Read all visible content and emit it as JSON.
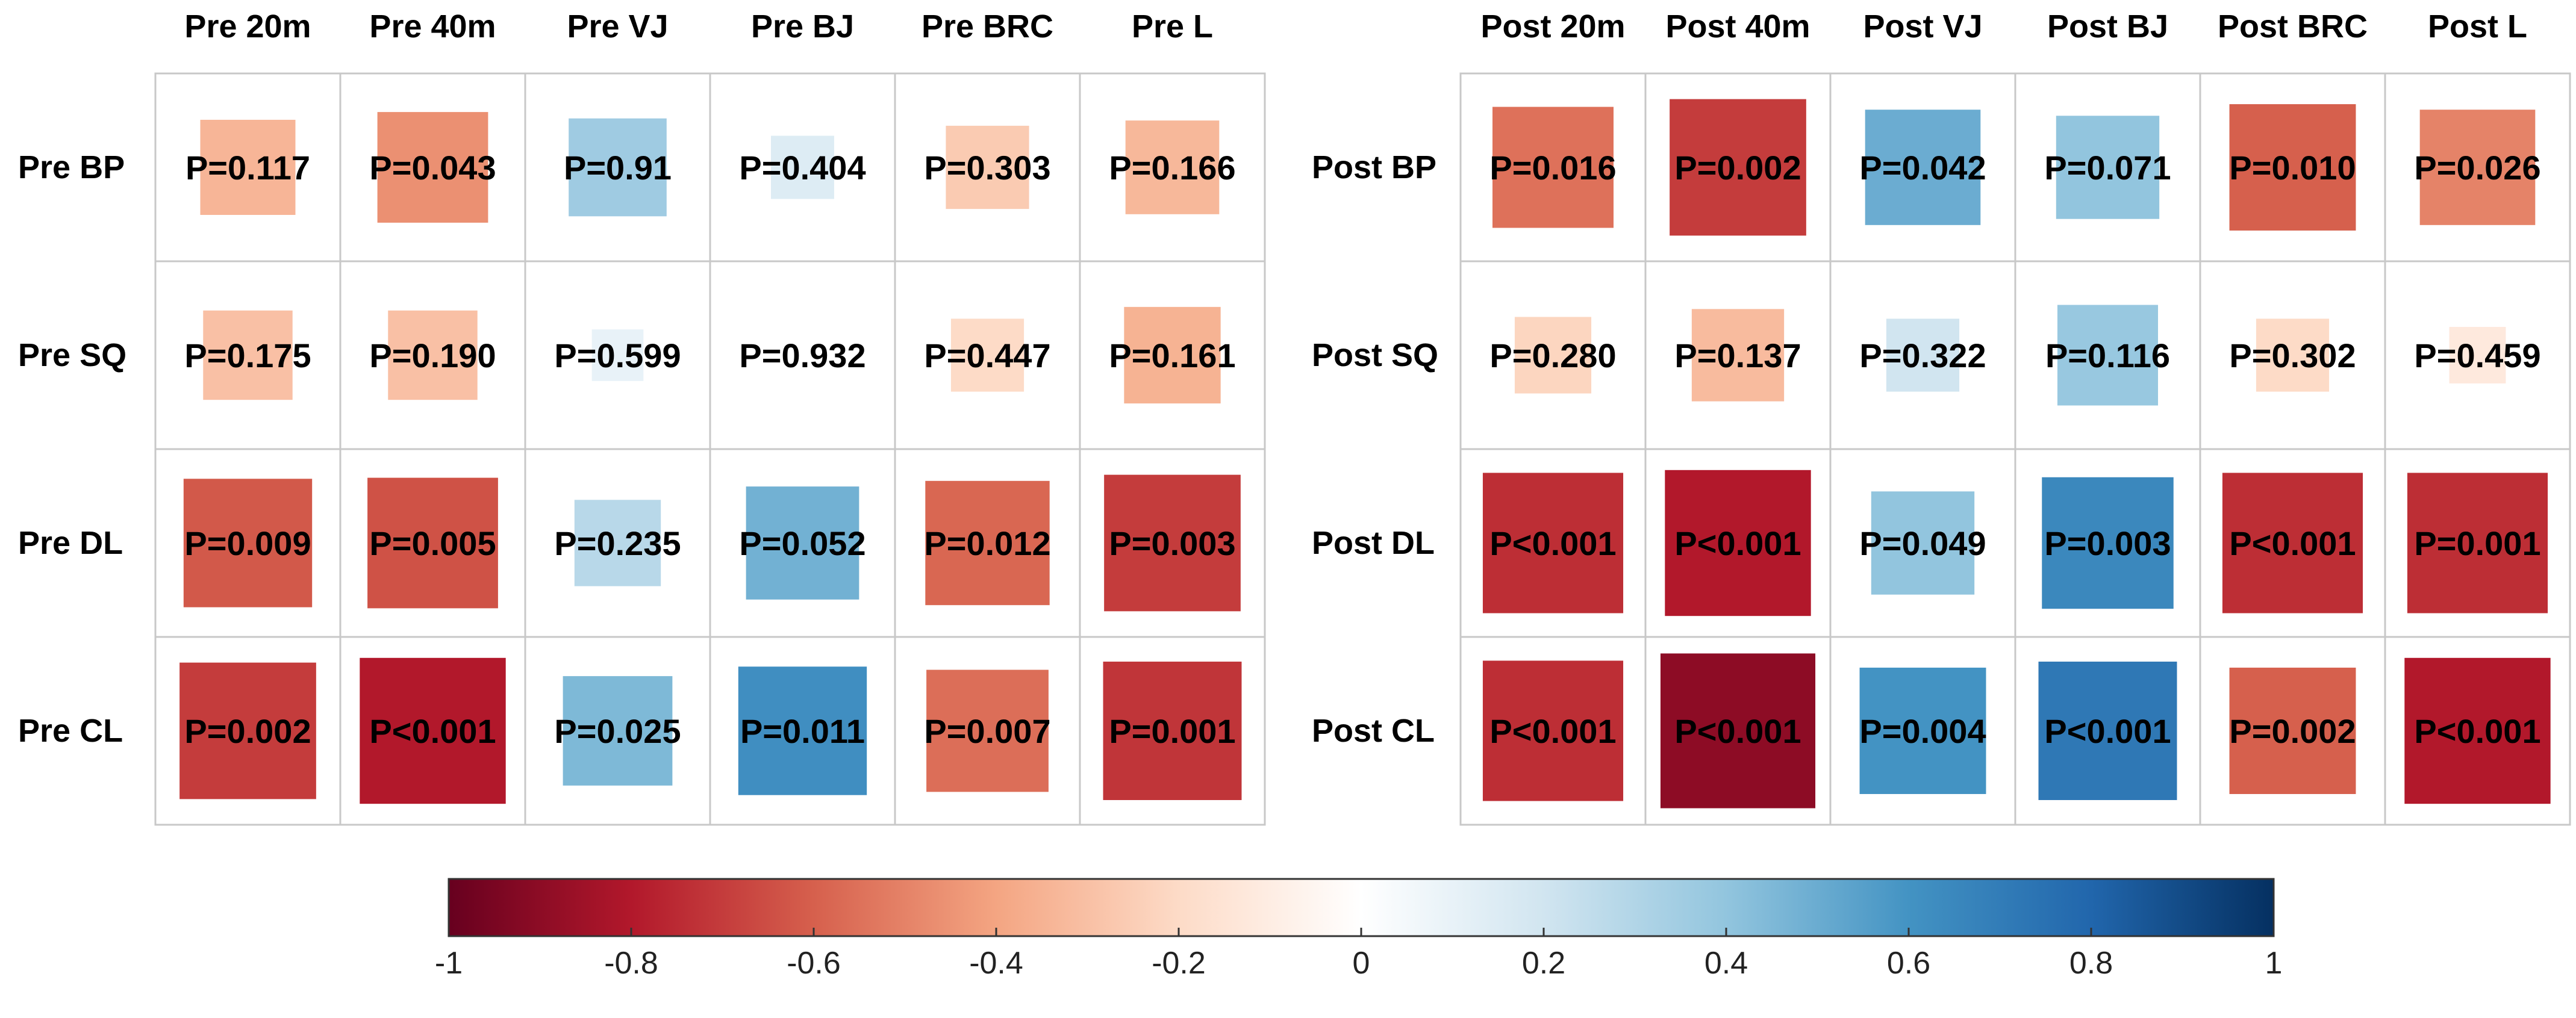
{
  "chart_data": {
    "type": "heatmap",
    "title": "",
    "value_kind": "correlation coefficient (cell colour/size) with P-value label",
    "panels": [
      {
        "name": "pre",
        "columns": [
          "Pre 20m",
          "Pre 40m",
          "Pre VJ",
          "Pre BJ",
          "Pre BRC",
          "Pre L"
        ],
        "rows": [
          "Pre BP",
          "Pre SQ",
          "Pre DL",
          "Pre CL"
        ],
        "p_labels": [
          [
            "P=0.117",
            "P=0.043",
            "P=0.91",
            "P=0.404",
            "P=0.303",
            "P=0.166"
          ],
          [
            "P=0.175",
            "P=0.190",
            "P=0.599",
            "P=0.932",
            "P=0.447",
            "P=0.161"
          ],
          [
            "P=0.009",
            "P=0.005",
            "P=0.235",
            "P=0.052",
            "P=0.012",
            "P=0.003"
          ],
          [
            "P=0.002",
            "P<0.001",
            "P=0.025",
            "P=0.011",
            "P=0.007",
            "P=0.001"
          ]
        ],
        "r_values": [
          [
            -0.34,
            -0.46,
            0.36,
            0.15,
            -0.26,
            -0.33
          ],
          [
            -0.3,
            -0.3,
            0.1,
            0.0,
            -0.2,
            -0.35
          ],
          [
            -0.62,
            -0.64,
            0.28,
            0.48,
            -0.58,
            -0.7
          ],
          [
            -0.7,
            -0.8,
            0.45,
            0.62,
            -0.56,
            -0.72
          ]
        ]
      },
      {
        "name": "post",
        "columns": [
          "Post 20m",
          "Post 40m",
          "Post VJ",
          "Post BJ",
          "Post BRC",
          "Post L"
        ],
        "rows": [
          "Post BP",
          "Post SQ",
          "Post DL",
          "Post CL"
        ],
        "p_labels": [
          [
            "P=0.016",
            "P=0.002",
            "P=0.042",
            "P=0.071",
            "P=0.010",
            "P=0.026"
          ],
          [
            "P=0.280",
            "P=0.137",
            "P=0.322",
            "P=0.116",
            "P=0.302",
            "P=0.459"
          ],
          [
            "P<0.001",
            "P<0.001",
            "P=0.049",
            "P=0.003",
            "P<0.001",
            "P=0.001"
          ],
          [
            "P<0.001",
            "P<0.001",
            "P=0.004",
            "P<0.001",
            "P=0.002",
            "P<0.001"
          ]
        ],
        "r_values": [
          [
            -0.55,
            -0.7,
            0.5,
            0.4,
            -0.6,
            -0.5
          ],
          [
            -0.22,
            -0.32,
            0.2,
            0.38,
            -0.2,
            -0.12
          ],
          [
            -0.74,
            -0.8,
            0.4,
            0.65,
            -0.74,
            -0.74
          ],
          [
            -0.74,
            -0.9,
            0.6,
            0.72,
            -0.6,
            -0.8
          ]
        ]
      }
    ],
    "colorbar": {
      "range": [
        -1,
        1
      ],
      "ticks": [
        "-1",
        "-0.8",
        "-0.6",
        "-0.4",
        "-0.2",
        "0",
        "0.2",
        "0.4",
        "0.6",
        "0.8",
        "1"
      ],
      "tick_values": [
        -1,
        -0.8,
        -0.6,
        -0.4,
        -0.2,
        0,
        0.2,
        0.4,
        0.6,
        0.8,
        1
      ],
      "palette": [
        "#67001f",
        "#b2182b",
        "#d6604d",
        "#f4a582",
        "#fddbc7",
        "#ffffff",
        "#d1e5f0",
        "#92c5de",
        "#4393c3",
        "#2166ac",
        "#053061"
      ],
      "orientation": "horizontal",
      "placement": "bottom"
    },
    "grid": true
  }
}
